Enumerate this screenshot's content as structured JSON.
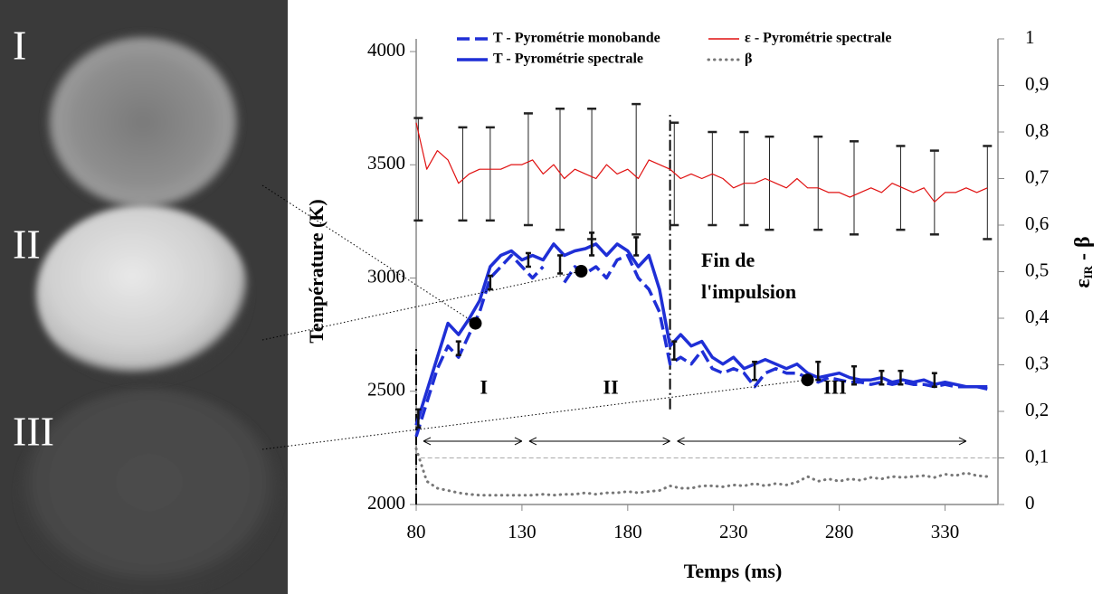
{
  "image_labels": [
    "I",
    "II",
    "III"
  ],
  "chart_data": {
    "type": "line",
    "xlabel": "Temps (ms)",
    "ylabel": "Température (K)",
    "y2label": {
      "main": "ε",
      "sub": "IR",
      "rest": " - β"
    },
    "xlim": [
      80,
      355
    ],
    "xticks": [
      80,
      130,
      180,
      230,
      280,
      330
    ],
    "ylim": [
      2000,
      4056
    ],
    "yticks": [
      2000,
      2500,
      3000,
      3500,
      4000
    ],
    "y2lim": [
      0,
      1
    ],
    "y2ticks": [
      0,
      {
        "value": 0.1,
        "label": "0,1"
      },
      {
        "value": 0.2,
        "label": "0,2"
      },
      {
        "value": 0.3,
        "label": "0,3"
      },
      {
        "value": 0.4,
        "label": "0,4"
      },
      {
        "value": 0.5,
        "label": "0,5"
      },
      {
        "value": 0.6,
        "label": "0,6"
      },
      {
        "value": 0.7,
        "label": "0,7"
      },
      {
        "value": 0.8,
        "label": "0,8"
      },
      {
        "value": 0.9,
        "label": "0,9"
      },
      1
    ],
    "x": [
      80,
      85,
      90,
      95,
      100,
      105,
      110,
      115,
      120,
      125,
      130,
      135,
      140,
      145,
      150,
      155,
      160,
      165,
      170,
      175,
      180,
      185,
      190,
      195,
      200,
      205,
      210,
      215,
      220,
      225,
      230,
      235,
      240,
      245,
      250,
      255,
      260,
      265,
      270,
      275,
      280,
      285,
      290,
      295,
      300,
      305,
      310,
      315,
      320,
      325,
      330,
      335,
      340,
      345,
      350
    ],
    "series": [
      {
        "name": "T - Pyrométrie monobande",
        "color": "#1f2fd6",
        "style": "dashed",
        "values": [
          2300,
          2450,
          2600,
          2700,
          2650,
          2750,
          2850,
          3000,
          3050,
          3100,
          3050,
          3000,
          3050,
          null,
          2980,
          3050,
          3020,
          3050,
          3000,
          3080,
          3100,
          3000,
          2950,
          2850,
          2620,
          2650,
          2620,
          2680,
          2600,
          2580,
          2600,
          2580,
          2520,
          2580,
          2600,
          2580,
          2580,
          2560,
          2540,
          2560,
          2550,
          2540,
          2540,
          2530,
          2540,
          2530,
          2540,
          2530,
          2530,
          2520,
          2530,
          2520,
          2520,
          2520,
          2510
        ]
      },
      {
        "name": "T - Pyrométrie spectrale",
        "color": "#1f2fd6",
        "style": "solid",
        "values": [
          2350,
          2500,
          2650,
          2800,
          2750,
          2820,
          2900,
          3050,
          3100,
          3120,
          3080,
          3100,
          3080,
          3150,
          3100,
          3120,
          3130,
          3150,
          3100,
          3150,
          3120,
          3050,
          3100,
          2950,
          2700,
          2750,
          2700,
          2720,
          2650,
          2620,
          2650,
          2600,
          2620,
          2640,
          2620,
          2600,
          2620,
          2580,
          2560,
          2570,
          2580,
          2560,
          2550,
          2550,
          2560,
          2540,
          2550,
          2540,
          2550,
          2530,
          2540,
          2530,
          2520,
          2520,
          2520
        ]
      },
      {
        "name": "ε - Pyrométrie spectrale",
        "color": "#e01010",
        "style": "thin",
        "axis": "y2",
        "values": [
          0.82,
          0.72,
          0.76,
          0.74,
          0.69,
          0.71,
          0.72,
          0.72,
          0.72,
          0.73,
          0.73,
          0.74,
          0.71,
          0.73,
          0.7,
          0.72,
          0.71,
          0.7,
          0.73,
          0.71,
          0.72,
          0.7,
          0.74,
          0.73,
          0.72,
          0.7,
          0.71,
          0.7,
          0.71,
          0.7,
          0.68,
          0.69,
          0.69,
          0.7,
          0.69,
          0.68,
          0.7,
          0.68,
          0.68,
          0.67,
          0.67,
          0.66,
          0.67,
          0.68,
          0.67,
          0.69,
          0.68,
          0.67,
          0.68,
          0.65,
          0.67,
          0.67,
          0.68,
          0.67,
          0.68
        ]
      },
      {
        "name": "β",
        "color": "#777777",
        "style": "dotted",
        "axis": "y2",
        "values": [
          0.12,
          0.05,
          0.035,
          0.03,
          0.025,
          0.022,
          0.02,
          0.02,
          0.02,
          0.02,
          0.02,
          0.02,
          0.022,
          0.02,
          0.022,
          0.022,
          0.025,
          0.022,
          0.025,
          0.025,
          0.028,
          0.025,
          0.028,
          0.03,
          0.04,
          0.035,
          0.035,
          0.04,
          0.04,
          0.038,
          0.042,
          0.04,
          0.045,
          0.04,
          0.045,
          0.042,
          0.048,
          0.06,
          0.05,
          0.055,
          0.05,
          0.055,
          0.052,
          0.058,
          0.055,
          0.06,
          0.058,
          0.06,
          0.062,
          0.058,
          0.065,
          0.062,
          0.068,
          0.062,
          0.06
        ]
      }
    ],
    "epsilon_error_bars": {
      "axis": "y2",
      "x": [
        81,
        102,
        115,
        133,
        148,
        163,
        184,
        202,
        220,
        235,
        247,
        270,
        287,
        309,
        325,
        350
      ],
      "values": [
        0.72,
        0.71,
        0.71,
        0.72,
        0.72,
        0.71,
        0.72,
        0.71,
        0.7,
        0.7,
        0.69,
        0.69,
        0.68,
        0.68,
        0.67,
        0.67
      ],
      "errors": [
        0.11,
        0.1,
        0.1,
        0.12,
        0.13,
        0.14,
        0.14,
        0.11,
        0.1,
        0.1,
        0.1,
        0.1,
        0.1,
        0.09,
        0.09,
        0.1
      ]
    },
    "temperature_error_bars": {
      "x": [
        81,
        100,
        115,
        133,
        148,
        163,
        184,
        202,
        240,
        270,
        287,
        300,
        309,
        325
      ],
      "values": [
        2380,
        2690,
        2980,
        3080,
        3060,
        3150,
        3140,
        2680,
        2590,
        2590,
        2570,
        2560,
        2560,
        2550
      ],
      "errors": [
        40,
        30,
        30,
        30,
        40,
        50,
        40,
        40,
        40,
        40,
        40,
        30,
        30,
        30
      ]
    },
    "points": {
      "x": [
        108,
        158,
        265
      ],
      "values": [
        2800,
        3030,
        2550
      ]
    },
    "markers": [
      {
        "x": 80,
        "from": 2000,
        "to": 2700
      },
      {
        "x": 200,
        "from": 2420,
        "to": 3720
      }
    ],
    "reference_y2": 0.1,
    "phases": [
      {
        "label": "I",
        "start": 80,
        "end": 130,
        "at": 112
      },
      {
        "label": "II",
        "start": 130,
        "end": 200,
        "at": 172
      },
      {
        "label": "III",
        "start": 200,
        "end": 340,
        "at": 278
      }
    ],
    "phase_arrow_y2": 0.136,
    "phase_label_y": 2510,
    "annotation": [
      "Fin de",
      "l'impulsion"
    ]
  }
}
